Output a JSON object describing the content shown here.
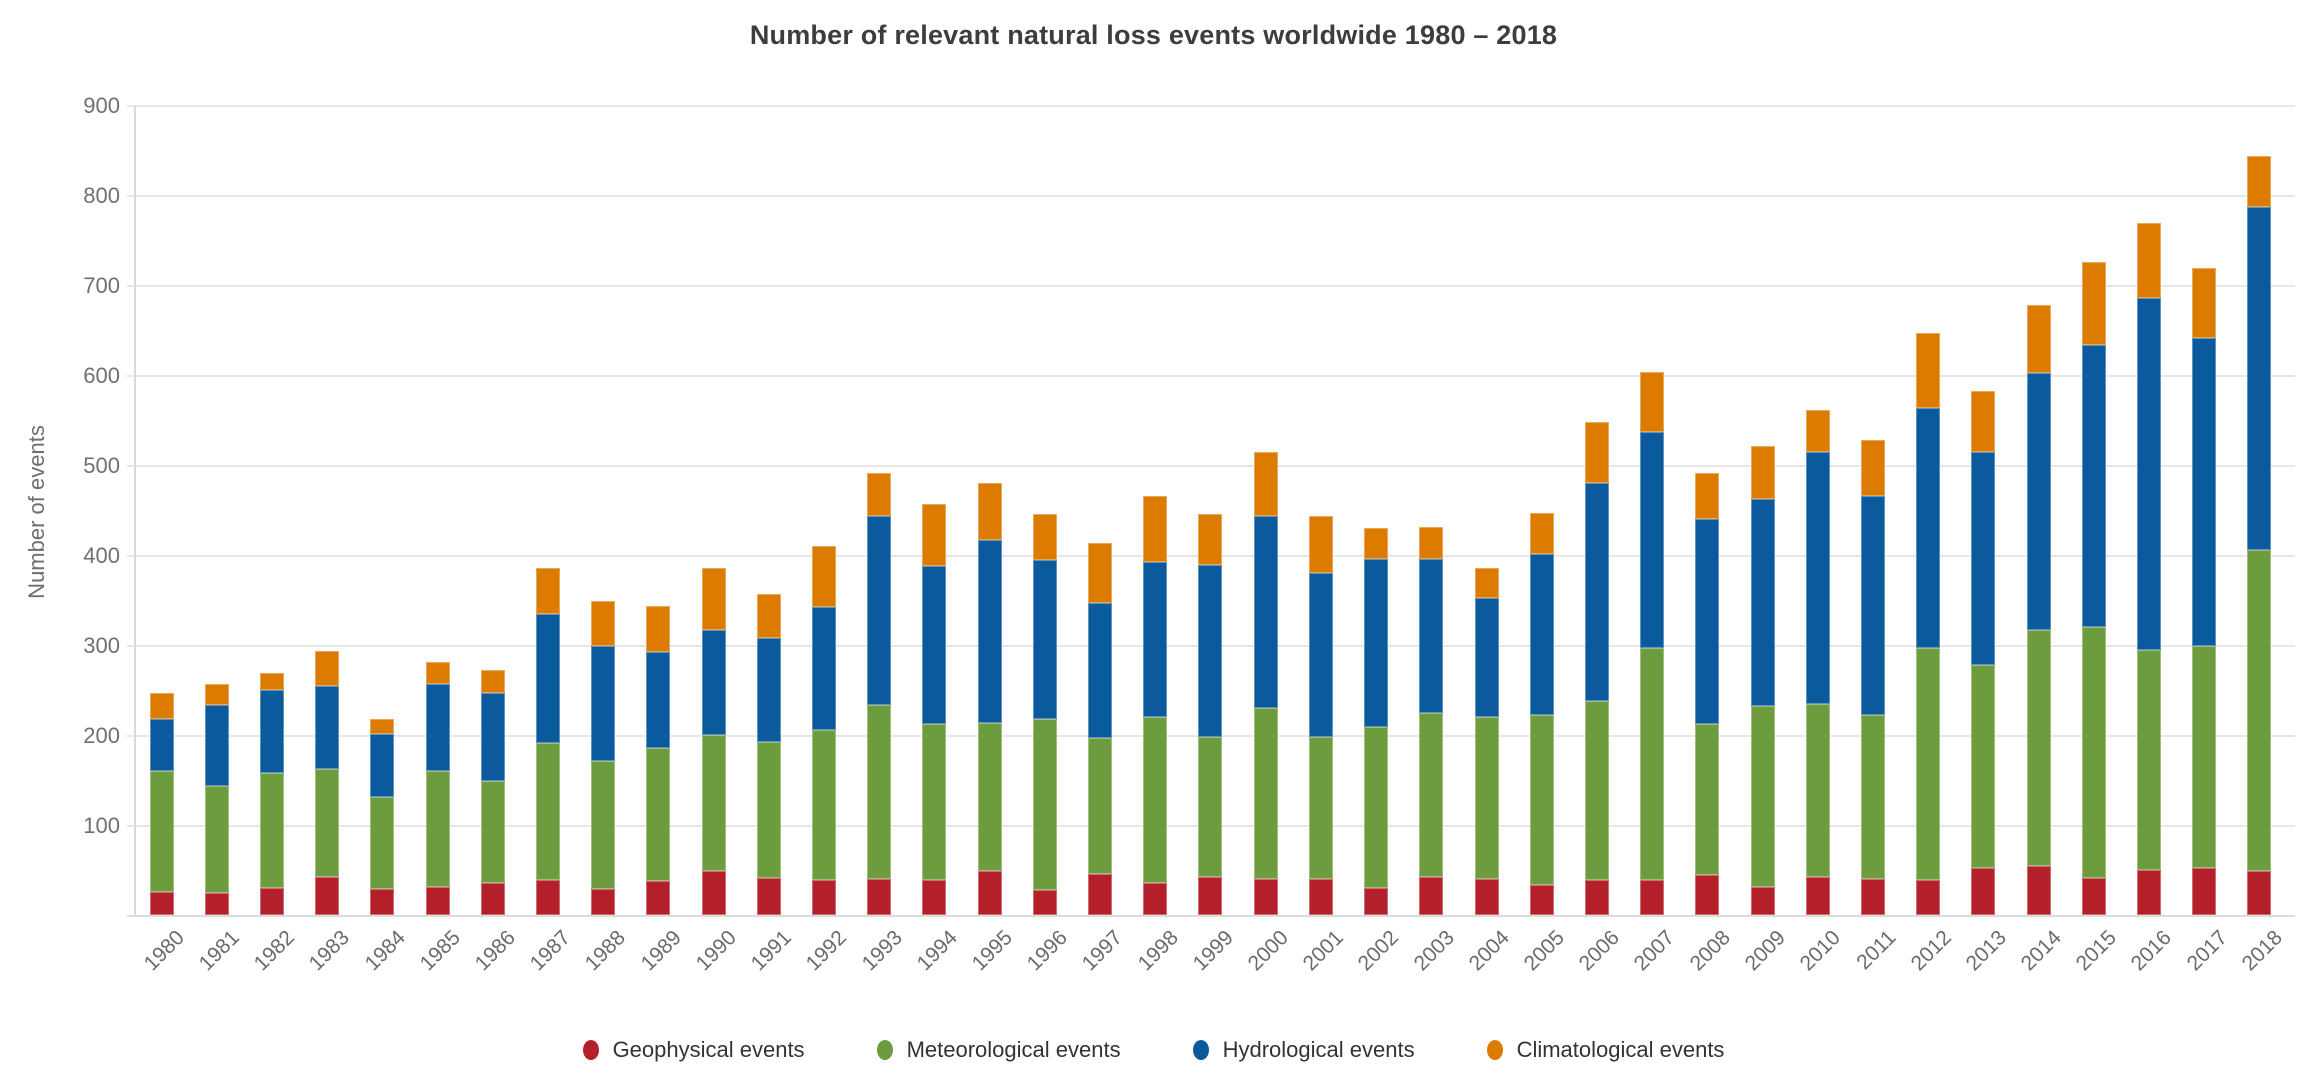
{
  "title": "Number of relevant natural loss events worldwide 1980 – 2018",
  "y_axis": {
    "title": "Number of events",
    "ticks": [
      900,
      800,
      700,
      600,
      500,
      400,
      300,
      200,
      100
    ]
  },
  "chart_data": {
    "type": "bar",
    "stacked": true,
    "title": "Number of relevant natural loss events worldwide 1980 – 2018",
    "xlabel": "",
    "ylabel": "Number of events",
    "ylim": [
      0,
      900
    ],
    "grid": true,
    "legend_position": "bottom",
    "categories": [
      "1980",
      "1981",
      "1982",
      "1983",
      "1984",
      "1985",
      "1986",
      "1987",
      "1988",
      "1989",
      "1990",
      "1991",
      "1992",
      "1993",
      "1994",
      "1995",
      "1996",
      "1997",
      "1998",
      "1999",
      "2000",
      "2001",
      "2002",
      "2003",
      "2004",
      "2005",
      "2006",
      "2007",
      "2008",
      "2009",
      "2010",
      "2011",
      "2012",
      "2013",
      "2014",
      "2015",
      "2016",
      "2017",
      "2018"
    ],
    "series": [
      {
        "name": "Geophysical events",
        "color": "#b4202a",
        "values": [
          26,
          25,
          31,
          43,
          29,
          32,
          36,
          40,
          30,
          38,
          49,
          42,
          40,
          41,
          40,
          49,
          28,
          46,
          36,
          43,
          41,
          41,
          31,
          43,
          41,
          34,
          40,
          40,
          45,
          32,
          43,
          41,
          40,
          53,
          55,
          42,
          51,
          53,
          50
        ]
      },
      {
        "name": "Meteorological events",
        "color": "#6d9c3e",
        "values": [
          135,
          119,
          128,
          120,
          103,
          129,
          114,
          152,
          142,
          148,
          152,
          151,
          166,
          193,
          173,
          165,
          190,
          151,
          185,
          156,
          190,
          158,
          179,
          182,
          180,
          189,
          198,
          257,
          168,
          201,
          192,
          182,
          258,
          226,
          263,
          279,
          244,
          247,
          356
        ]
      },
      {
        "name": "Hydrological events",
        "color": "#0b5a9d",
        "values": [
          58,
          90,
          92,
          92,
          70,
          96,
          97,
          143,
          128,
          107,
          117,
          116,
          137,
          210,
          176,
          204,
          177,
          151,
          172,
          191,
          213,
          182,
          186,
          172,
          132,
          179,
          243,
          241,
          228,
          230,
          281,
          243,
          266,
          236,
          285,
          314,
          392,
          342,
          382
        ]
      },
      {
        "name": "Climatological events",
        "color": "#dc7b00",
        "values": [
          28,
          24,
          19,
          39,
          17,
          25,
          26,
          51,
          50,
          51,
          69,
          48,
          68,
          48,
          69,
          63,
          52,
          66,
          74,
          57,
          72,
          63,
          35,
          35,
          34,
          46,
          68,
          66,
          51,
          59,
          46,
          63,
          84,
          68,
          76,
          92,
          83,
          78,
          57
        ]
      }
    ]
  }
}
